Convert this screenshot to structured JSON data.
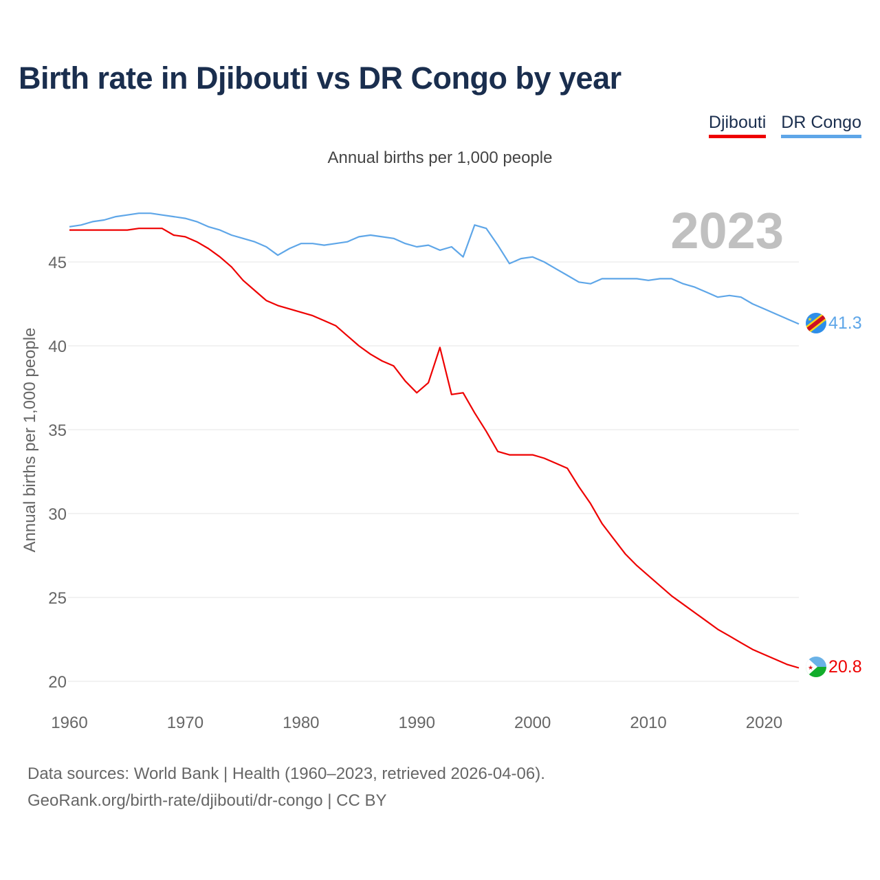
{
  "title": "Birth rate in Djibouti vs DR Congo by year",
  "subtitle": "Annual births per 1,000 people",
  "legend": [
    {
      "name": "Djibouti",
      "color": "#ee0000"
    },
    {
      "name": "DR Congo",
      "color": "#5ea6e8"
    }
  ],
  "highlight_year": "2023",
  "footer": {
    "line1": "Data sources: World Bank | Health (1960–2023, retrieved 2026-04-06).",
    "line2": "GeoRank.org/birth-rate/djibouti/dr-congo | CC BY"
  },
  "chart_data": {
    "type": "line",
    "title": "Birth rate in Djibouti vs DR Congo by year",
    "xlabel": "",
    "ylabel": "Annual births per 1,000 people",
    "xlim": [
      1960,
      2023
    ],
    "ylim": [
      20,
      47.5
    ],
    "x_ticks": [
      1960,
      1970,
      1980,
      1990,
      2000,
      2010,
      2020
    ],
    "y_ticks": [
      20,
      25,
      30,
      35,
      40,
      45
    ],
    "grid": true,
    "legend_position": "top-right",
    "x": [
      1960,
      1961,
      1962,
      1963,
      1964,
      1965,
      1966,
      1967,
      1968,
      1969,
      1970,
      1971,
      1972,
      1973,
      1974,
      1975,
      1976,
      1977,
      1978,
      1979,
      1980,
      1981,
      1982,
      1983,
      1984,
      1985,
      1986,
      1987,
      1988,
      1989,
      1990,
      1991,
      1992,
      1993,
      1994,
      1995,
      1996,
      1997,
      1998,
      1999,
      2000,
      2001,
      2002,
      2003,
      2004,
      2005,
      2006,
      2007,
      2008,
      2009,
      2010,
      2011,
      2012,
      2013,
      2014,
      2015,
      2016,
      2017,
      2018,
      2019,
      2020,
      2021,
      2022,
      2023
    ],
    "series": [
      {
        "name": "Djibouti",
        "color": "#ee0000",
        "end_label": "20.8",
        "values": [
          46.9,
          46.9,
          46.9,
          46.9,
          46.9,
          46.9,
          47.0,
          47.0,
          47.0,
          46.6,
          46.5,
          46.2,
          45.8,
          45.3,
          44.7,
          43.9,
          43.3,
          42.7,
          42.4,
          42.2,
          42.0,
          41.8,
          41.5,
          41.2,
          40.6,
          40.0,
          39.5,
          39.1,
          38.8,
          37.9,
          37.2,
          37.8,
          39.9,
          37.1,
          37.2,
          36.0,
          34.9,
          33.7,
          33.5,
          33.5,
          33.5,
          33.3,
          33.0,
          32.7,
          31.6,
          30.6,
          29.4,
          28.5,
          27.6,
          26.9,
          26.3,
          25.7,
          25.1,
          24.6,
          24.1,
          23.6,
          23.1,
          22.7,
          22.3,
          21.9,
          21.6,
          21.3,
          21.0,
          20.8
        ]
      },
      {
        "name": "DR Congo",
        "color": "#5ea6e8",
        "end_label": "41.3",
        "values": [
          47.1,
          47.2,
          47.4,
          47.5,
          47.7,
          47.8,
          47.9,
          47.9,
          47.8,
          47.7,
          47.6,
          47.4,
          47.1,
          46.9,
          46.6,
          46.4,
          46.2,
          45.9,
          45.4,
          45.8,
          46.1,
          46.1,
          46.0,
          46.1,
          46.2,
          46.5,
          46.6,
          46.5,
          46.4,
          46.1,
          45.9,
          46.0,
          45.7,
          45.9,
          45.3,
          47.2,
          47.0,
          46.0,
          44.9,
          45.2,
          45.3,
          45.0,
          44.6,
          44.2,
          43.8,
          43.7,
          44.0,
          44.0,
          44.0,
          44.0,
          43.9,
          44.0,
          44.0,
          43.7,
          43.5,
          43.2,
          42.9,
          43.0,
          42.9,
          42.5,
          42.2,
          41.9,
          41.6,
          41.3
        ]
      }
    ]
  }
}
